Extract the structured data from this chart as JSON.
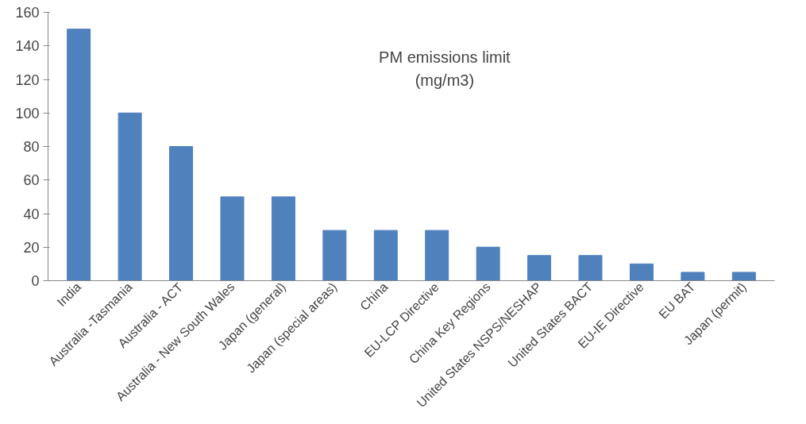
{
  "chart_data": {
    "type": "bar",
    "title": "PM emissions limit\n(mg/m3)",
    "categories": [
      "India",
      "Australia -Tasmania",
      "Australia - ACT",
      "Australia - New South Wales",
      "Japan (general)",
      "Japan (special areas)",
      "China",
      "EU-LCP Directive",
      "China Key Regions",
      "United States NSPS/NESHAP",
      "United States BACT",
      "EU-IE Directive",
      "EU BAT",
      "Japan (permit)"
    ],
    "values": [
      150,
      100,
      80,
      50,
      50,
      30,
      30,
      30,
      20,
      15,
      15,
      10,
      5,
      5
    ],
    "color": "#4f81bd",
    "ylim": [
      0,
      160
    ],
    "yticks": [
      0,
      20,
      40,
      60,
      80,
      100,
      120,
      140,
      160
    ],
    "grid": false
  }
}
